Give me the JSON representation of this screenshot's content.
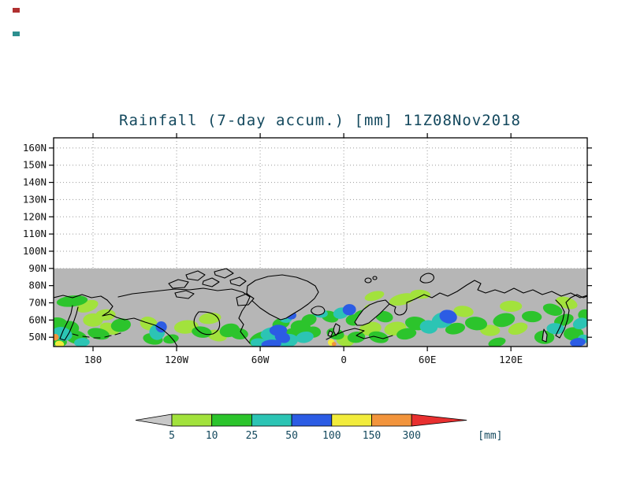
{
  "title": "Rainfall (7-day accum.) [mm] 11Z08Nov2018",
  "colors": {
    "title_text": "#14495e",
    "axis_text": "#111111",
    "frame": "#000000",
    "grid": "#9a9a9a"
  },
  "chart_data": {
    "type": "heatmap",
    "title": "Rainfall (7-day accum.) [mm] 11Z08Nov2018",
    "unit_label": "[mm]",
    "x_ticks": [
      "180",
      "120W",
      "60W",
      "0",
      "60E",
      "120E"
    ],
    "x_tick_lons": [
      -180,
      -120,
      -60,
      0,
      60,
      120
    ],
    "y_ticks": [
      "160N",
      "150N",
      "140N",
      "130N",
      "120N",
      "110N",
      "100N",
      "90N",
      "80N",
      "70N",
      "60N",
      "50N"
    ],
    "lon_domain": [
      -208.3,
      174.8
    ],
    "lat_domain": [
      44.6,
      165.9
    ],
    "gray_band_below_lat": 90,
    "background_band_color": "#b6b6b6",
    "colorbar": {
      "levels": [
        5,
        10,
        25,
        50,
        100,
        150,
        300
      ],
      "segment_colors": [
        "#a2e23c",
        "#2cc42c",
        "#2cc4b4",
        "#2c5ce4",
        "#f2ec3c",
        "#f2943c"
      ],
      "under_arrow_color": "#c8c8c8",
      "over_arrow_color": "#e83030"
    },
    "rain_patches": [
      [
        -206,
        57,
        10,
        7,
        2
      ],
      [
        -202,
        52,
        9,
        6,
        3
      ],
      [
        -205,
        48,
        8,
        5,
        2
      ],
      [
        -198,
        55,
        10,
        7,
        2
      ],
      [
        -192,
        50,
        10,
        6,
        2
      ],
      [
        -188,
        47,
        7,
        4,
        3
      ],
      [
        -204,
        46,
        4,
        3,
        5
      ],
      [
        -207,
        50,
        3,
        3,
        6
      ],
      [
        -195,
        71,
        14,
        5,
        2
      ],
      [
        -184,
        68,
        10,
        5,
        1
      ],
      [
        -180,
        60,
        9,
        6,
        1
      ],
      [
        -176,
        52,
        10,
        5,
        2
      ],
      [
        -168,
        55,
        9,
        5,
        1
      ],
      [
        -160,
        57,
        9,
        6,
        2
      ],
      [
        -171,
        63,
        9,
        5,
        1
      ],
      [
        -140,
        58,
        8,
        6,
        1
      ],
      [
        -134,
        53,
        7,
        7,
        3
      ],
      [
        -131,
        56,
        5,
        5,
        4
      ],
      [
        -137,
        49,
        9,
        5,
        2
      ],
      [
        -124,
        49,
        7,
        4,
        2
      ],
      [
        -113,
        56,
        11,
        6,
        1
      ],
      [
        -102,
        53,
        9,
        5,
        2
      ],
      [
        -91,
        51,
        9,
        5,
        1
      ],
      [
        -82,
        54,
        9,
        6,
        2
      ],
      [
        -96,
        61,
        10,
        5,
        1
      ],
      [
        -75,
        52,
        8,
        5,
        2
      ],
      [
        -57,
        49,
        14,
        7,
        2
      ],
      [
        -51,
        52,
        11,
        6,
        3
      ],
      [
        -47,
        54,
        8,
        5,
        4
      ],
      [
        -44,
        50,
        7,
        5,
        4
      ],
      [
        -59,
        46,
        10,
        5,
        3
      ],
      [
        -52,
        46,
        9,
        4,
        4
      ],
      [
        -40,
        48,
        9,
        6,
        3
      ],
      [
        -36,
        52,
        8,
        5,
        2
      ],
      [
        -45,
        58,
        8,
        5,
        2
      ],
      [
        -42,
        61,
        6,
        4,
        3
      ],
      [
        -38,
        63,
        5,
        4,
        4
      ],
      [
        -31,
        56,
        9,
        6,
        2
      ],
      [
        -28,
        50,
        8,
        5,
        3
      ],
      [
        -25,
        60,
        7,
        5,
        2
      ],
      [
        -22,
        53,
        7,
        5,
        2
      ],
      [
        -17,
        64,
        7,
        4,
        3
      ],
      [
        -10,
        62,
        8,
        5,
        2
      ],
      [
        -2,
        64,
        7,
        5,
        3
      ],
      [
        4,
        66,
        6,
        5,
        4
      ],
      [
        7,
        60,
        7,
        5,
        2
      ],
      [
        -6,
        52,
        8,
        5,
        2
      ],
      [
        1,
        48,
        8,
        5,
        1
      ],
      [
        9,
        50,
        8,
        5,
        2
      ],
      [
        -9,
        47,
        3,
        3,
        5
      ],
      [
        -7,
        46,
        2,
        2,
        6
      ],
      [
        19,
        55,
        10,
        6,
        1
      ],
      [
        25,
        50,
        9,
        5,
        2
      ],
      [
        14,
        62,
        9,
        6,
        2
      ],
      [
        21,
        66,
        8,
        5,
        1
      ],
      [
        29,
        62,
        8,
        5,
        2
      ],
      [
        37,
        55,
        10,
        6,
        1
      ],
      [
        45,
        52,
        9,
        5,
        2
      ],
      [
        52,
        58,
        10,
        6,
        2
      ],
      [
        61,
        56,
        8,
        6,
        3
      ],
      [
        75,
        62,
        8,
        6,
        4
      ],
      [
        71,
        60,
        10,
        7,
        3
      ],
      [
        80,
        55,
        9,
        5,
        2
      ],
      [
        86,
        65,
        9,
        5,
        1
      ],
      [
        42,
        72,
        12,
        5,
        1
      ],
      [
        55,
        75,
        9,
        4,
        1
      ],
      [
        22,
        74,
        9,
        4,
        1
      ],
      [
        95,
        58,
        10,
        6,
        2
      ],
      [
        105,
        54,
        9,
        5,
        1
      ],
      [
        115,
        60,
        10,
        6,
        2
      ],
      [
        125,
        55,
        9,
        5,
        1
      ],
      [
        135,
        62,
        9,
        5,
        2
      ],
      [
        120,
        68,
        10,
        5,
        1
      ],
      [
        110,
        47,
        8,
        4,
        2
      ],
      [
        144,
        50,
        9,
        6,
        2
      ],
      [
        152,
        55,
        8,
        5,
        3
      ],
      [
        158,
        60,
        9,
        5,
        2
      ],
      [
        165,
        52,
        9,
        6,
        2
      ],
      [
        170,
        58,
        7,
        5,
        3
      ],
      [
        168,
        47,
        7,
        4,
        4
      ],
      [
        160,
        70,
        10,
        5,
        1
      ],
      [
        150,
        66,
        9,
        5,
        2
      ],
      [
        173,
        63,
        6,
        5,
        2
      ],
      [
        172,
        49,
        5,
        4,
        3
      ]
    ]
  }
}
